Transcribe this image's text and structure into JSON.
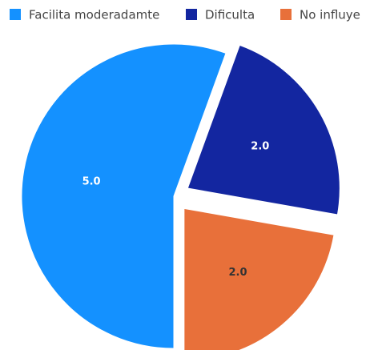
{
  "chart_data": {
    "type": "pie",
    "categories": [
      "Facilita moderadamte",
      "Dificulta",
      "No influye"
    ],
    "values": [
      5,
      2,
      2
    ],
    "value_labels": [
      "5.0",
      "2.0",
      "2.0"
    ],
    "colors": [
      "#1491ff",
      "#1326a0",
      "#e8703a"
    ],
    "legend": "top"
  }
}
